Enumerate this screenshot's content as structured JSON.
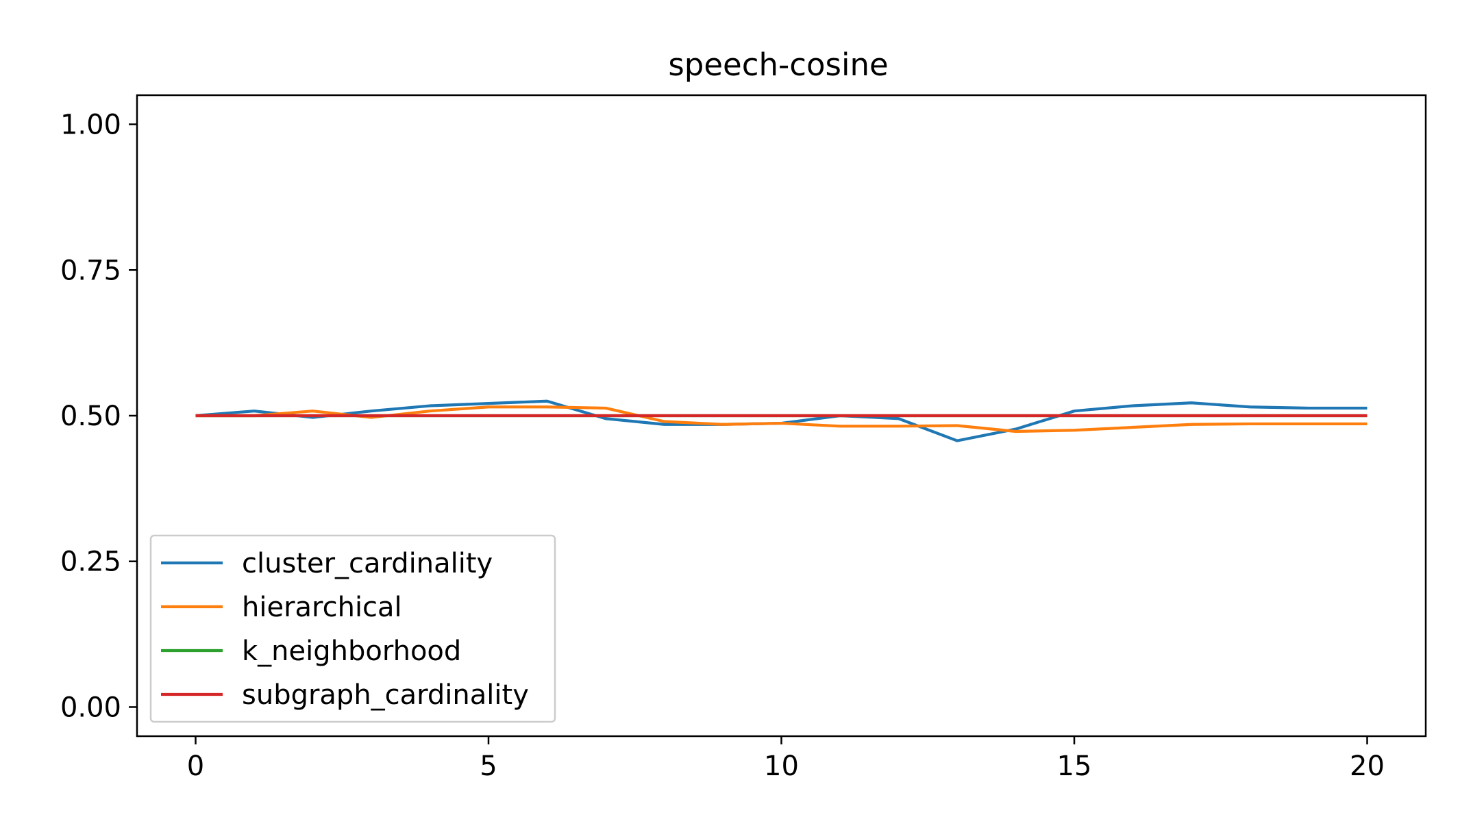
{
  "chart_data": {
    "type": "line",
    "title": "speech-cosine",
    "xlabel": "",
    "ylabel": "",
    "xlim": [
      -1,
      21
    ],
    "ylim": [
      -0.05,
      1.05
    ],
    "x_ticks": [
      0,
      5,
      10,
      15,
      20
    ],
    "x_tick_labels": [
      "0",
      "5",
      "10",
      "15",
      "20"
    ],
    "y_ticks": [
      0.0,
      0.25,
      0.5,
      0.75,
      1.0
    ],
    "y_tick_labels": [
      "0.00",
      "0.25",
      "0.50",
      "0.75",
      "1.00"
    ],
    "grid": false,
    "legend_position": "lower-left",
    "x": [
      0,
      1,
      2,
      3,
      4,
      5,
      6,
      7,
      8,
      9,
      10,
      11,
      12,
      13,
      14,
      15,
      16,
      17,
      18,
      19,
      20
    ],
    "series": [
      {
        "name": "cluster_cardinality",
        "color": "#1f77b4",
        "values": [
          0.5,
          0.508,
          0.497,
          0.508,
          0.517,
          0.521,
          0.525,
          0.495,
          0.485,
          0.485,
          0.487,
          0.5,
          0.495,
          0.457,
          0.477,
          0.508,
          0.517,
          0.522,
          0.515,
          0.513,
          0.513
        ]
      },
      {
        "name": "hierarchical",
        "color": "#ff7f0e",
        "values": [
          0.5,
          0.5,
          0.508,
          0.497,
          0.508,
          0.515,
          0.515,
          0.513,
          0.49,
          0.485,
          0.487,
          0.482,
          0.482,
          0.483,
          0.473,
          0.475,
          0.48,
          0.485,
          0.486,
          0.486,
          0.486
        ]
      },
      {
        "name": "k_neighborhood",
        "color": "#2ca02c",
        "values": [
          0.5,
          0.5,
          0.5,
          0.5,
          0.5,
          0.5,
          0.5,
          0.5,
          0.5,
          0.5,
          0.5,
          0.5,
          0.5,
          0.5,
          0.5,
          0.5,
          0.5,
          0.5,
          0.5,
          0.5,
          0.5
        ]
      },
      {
        "name": "subgraph_cardinality",
        "color": "#d62728",
        "values": [
          0.5,
          0.5,
          0.5,
          0.5,
          0.5,
          0.5,
          0.5,
          0.5,
          0.5,
          0.5,
          0.5,
          0.5,
          0.5,
          0.5,
          0.5,
          0.5,
          0.5,
          0.5,
          0.5,
          0.5,
          0.5
        ]
      }
    ]
  }
}
